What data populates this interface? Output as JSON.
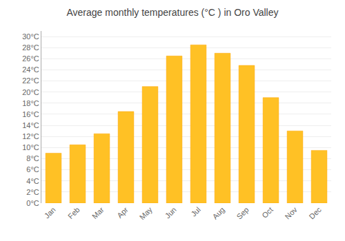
{
  "chart_data": {
    "type": "bar",
    "title": "Average monthly temperatures (°C ) in Oro Valley",
    "categories": [
      "Jan",
      "Feb",
      "Mar",
      "Apr",
      "May",
      "Jun",
      "Jul",
      "Aug",
      "Sep",
      "Oct",
      "Nov",
      "Dec"
    ],
    "values": [
      9,
      10.5,
      12.5,
      16.5,
      21,
      26.5,
      28.5,
      27,
      24.8,
      19,
      13,
      9.5
    ],
    "color": "#FFC125",
    "ylim": [
      0,
      31
    ],
    "yticks": [
      {
        "value": 0,
        "label": "0°C"
      },
      {
        "value": 2,
        "label": "2°C"
      },
      {
        "value": 4,
        "label": "4°C"
      },
      {
        "value": 6,
        "label": "6°C"
      },
      {
        "value": 8,
        "label": "8°C"
      },
      {
        "value": 10,
        "label": "10°C"
      },
      {
        "value": 12,
        "label": "12°C"
      },
      {
        "value": 14,
        "label": "14°C"
      },
      {
        "value": 16,
        "label": "16°C"
      },
      {
        "value": 18,
        "label": "18°C"
      },
      {
        "value": 20,
        "label": "20°C"
      },
      {
        "value": 22,
        "label": "22°C"
      },
      {
        "value": 24,
        "label": "24°C"
      },
      {
        "value": 26,
        "label": "26°C"
      },
      {
        "value": 28,
        "label": "28°C"
      },
      {
        "value": 30,
        "label": "30°C"
      }
    ],
    "grid": true
  }
}
